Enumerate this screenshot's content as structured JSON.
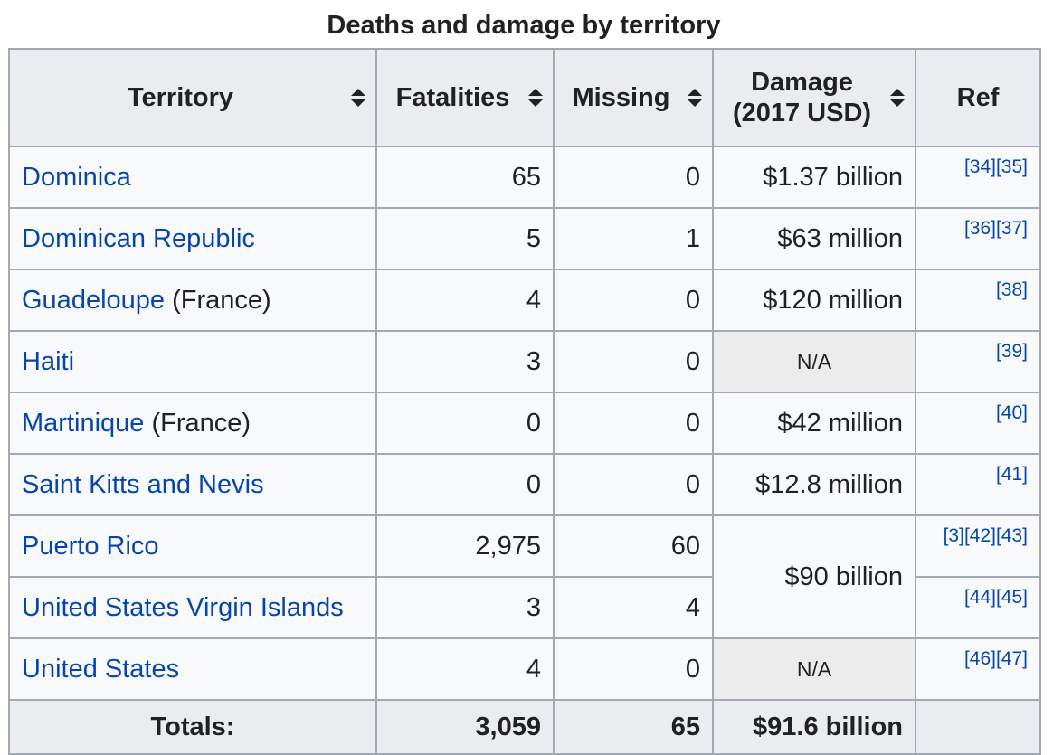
{
  "caption": "Deaths and damage by territory",
  "headers": {
    "territory": "Territory",
    "fatalities": "Fatalities",
    "missing": "Missing",
    "damage_line1": "Damage",
    "damage_line2": "(2017 USD)",
    "ref": "Ref"
  },
  "icons": {
    "sort": "sort-up-down-icon"
  },
  "rows": [
    {
      "territory": "Dominica",
      "note": "",
      "fatalities": "65",
      "missing": "0",
      "damage": "$1.37 billion",
      "refs": [
        "[34]",
        "[35]"
      ]
    },
    {
      "territory": "Dominican Republic",
      "note": "",
      "fatalities": "5",
      "missing": "1",
      "damage": "$63 million",
      "refs": [
        "[36]",
        "[37]"
      ]
    },
    {
      "territory": "Guadeloupe",
      "note": " (France)",
      "fatalities": "4",
      "missing": "0",
      "damage": "$120 million",
      "refs": [
        "[38]"
      ]
    },
    {
      "territory": "Haiti",
      "note": "",
      "fatalities": "3",
      "missing": "0",
      "damage": "N/A",
      "refs": [
        "[39]"
      ]
    },
    {
      "territory": "Martinique",
      "note": " (France)",
      "fatalities": "0",
      "missing": "0",
      "damage": "$42 million",
      "refs": [
        "[40]"
      ]
    },
    {
      "territory": "Saint Kitts and Nevis",
      "note": "",
      "fatalities": "0",
      "missing": "0",
      "damage": "$12.8 million",
      "refs": [
        "[41]"
      ]
    },
    {
      "territory": "Puerto Rico",
      "note": "",
      "fatalities": "2,975",
      "missing": "60",
      "damage": "$90 billion",
      "refs": [
        "[3]",
        "[42]",
        "[43]"
      ]
    },
    {
      "territory": "United States Virgin Islands",
      "note": "",
      "fatalities": "3",
      "missing": "4",
      "damage": "",
      "refs": [
        "[44]",
        "[45]"
      ]
    },
    {
      "territory": "United States",
      "note": "",
      "fatalities": "4",
      "missing": "0",
      "damage": "N/A",
      "refs": [
        "[46]",
        "[47]"
      ]
    }
  ],
  "totals": {
    "label": "Totals:",
    "fatalities": "3,059",
    "missing": "65",
    "damage": "$91.6 billion"
  },
  "colors": {
    "link": "#0645ad",
    "header_bg": "#eaecf0",
    "cell_bg": "#f8f9fa",
    "na_bg": "#ececec",
    "border": "#a2a9b1"
  }
}
